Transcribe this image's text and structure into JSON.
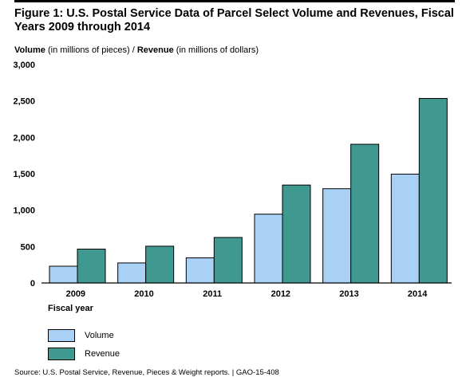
{
  "title": "Figure 1: U.S. Postal Service Data of Parcel Select Volume and Revenues, Fiscal Years 2009 through 2014",
  "axis_caption": {
    "volume_bold": "Volume",
    "volume_rest": " (in millions of pieces) / ",
    "revenue_bold": "Revenue",
    "revenue_rest": " (in millions of dollars)"
  },
  "source": "Source: U.S. Postal Service, Revenue, Pieces & Weight reports.  |  GAO-15-408",
  "colors": {
    "volume": "#a9d0f5",
    "revenue": "#3f9990"
  },
  "chart_data": {
    "type": "bar",
    "categories": [
      "2009",
      "2010",
      "2011",
      "2012",
      "2013",
      "2014"
    ],
    "series": [
      {
        "name": "Volume",
        "values": [
          230,
          275,
          345,
          945,
          1295,
          1495
        ]
      },
      {
        "name": "Revenue",
        "values": [
          465,
          505,
          625,
          1345,
          1905,
          2535
        ]
      }
    ],
    "xlabel": "Fiscal year",
    "ylim": [
      0,
      3000
    ],
    "yticks": [
      "0",
      "500",
      "1,000",
      "1,500",
      "2,000",
      "2,500",
      "3,000"
    ],
    "ytick_values": [
      0,
      500,
      1000,
      1500,
      2000,
      2500,
      3000
    ],
    "legend_position": "bottom-left",
    "grid": false
  }
}
